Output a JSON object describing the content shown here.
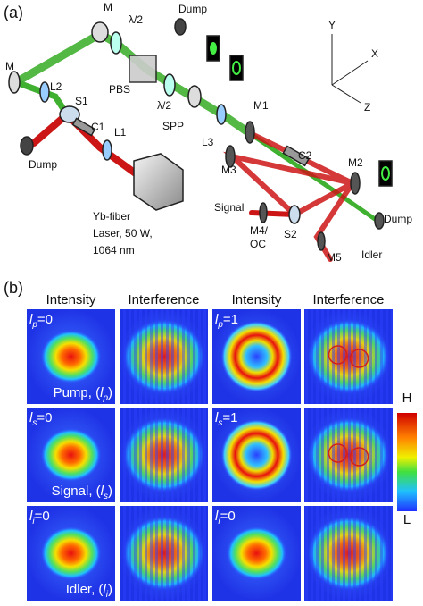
{
  "panel_a": {
    "label": "(a)",
    "labels": [
      "M",
      "λ/2",
      "Dump",
      "M",
      "L2",
      "S1",
      "C1",
      "L1",
      "Dump",
      "PBS",
      "λ/2",
      "SPP",
      "L3",
      "M1",
      "M3",
      "C2",
      "M2",
      "Dump",
      "Signal",
      "M4/",
      "OC",
      "S2",
      "M5",
      "Idler"
    ],
    "laser": [
      "Yb-fiber",
      "Laser, 50 W,",
      "1064 nm"
    ],
    "axes": [
      "Y",
      "X",
      "Z"
    ]
  },
  "panel_b": {
    "label": "(b)",
    "column_headers": [
      "Intensity",
      "Interference",
      "Intensity",
      "Interference"
    ],
    "rows": [
      {
        "var": "l",
        "sub": "p",
        "left": "=0",
        "right": "=1",
        "name": "Pump, (",
        "close": ")"
      },
      {
        "var": "l",
        "sub": "s",
        "left": "=0",
        "right": "=1",
        "name": "Signal, (",
        "close": ")"
      },
      {
        "var": "l",
        "sub": "i",
        "left": "=0",
        "right": "=0",
        "name": "Idler, (",
        "close": ")"
      }
    ],
    "colorbar": {
      "high": "H",
      "low": "L"
    }
  }
}
